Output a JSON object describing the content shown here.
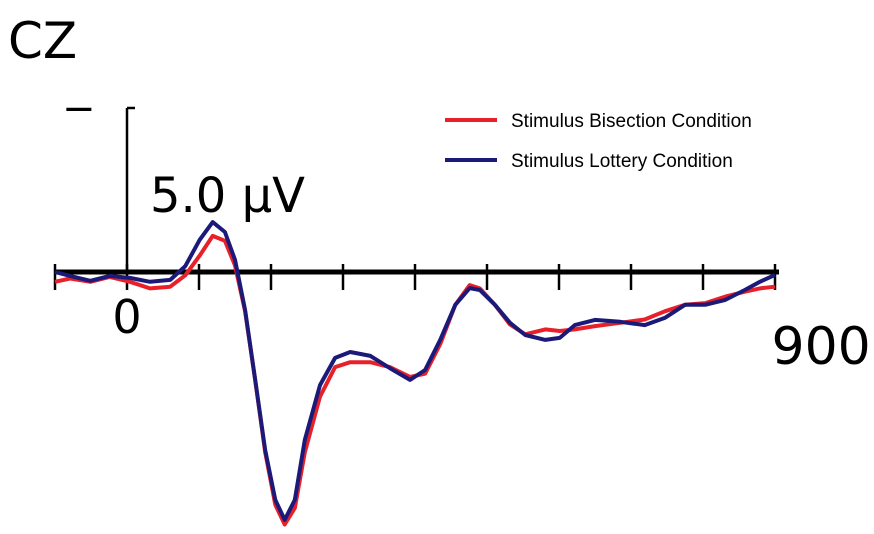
{
  "chart_data": {
    "type": "line",
    "title": "CZ",
    "x": [
      -100,
      -79,
      -51,
      -24,
      4,
      32,
      60,
      81,
      101,
      119,
      136,
      150,
      164,
      178,
      192,
      206,
      219,
      233,
      247,
      268,
      289,
      310,
      338,
      365,
      393,
      414,
      435,
      456,
      476,
      490,
      511,
      532,
      553,
      581,
      601,
      622,
      650,
      685,
      719,
      747,
      775,
      803,
      831,
      858,
      879,
      900
    ],
    "series": [
      {
        "name": "Stimulus Bisection Condition",
        "color": "#e8202a",
        "values": [
          0.3,
          0.2,
          0.3,
          0.15,
          0.3,
          0.5,
          0.45,
          0.1,
          -0.5,
          -1.1,
          -0.95,
          -0.2,
          1.2,
          3.3,
          5.5,
          7.1,
          7.7,
          7.2,
          5.5,
          3.8,
          2.9,
          2.75,
          2.75,
          2.9,
          3.2,
          3.1,
          2.2,
          1.0,
          0.4,
          0.5,
          1.0,
          1.6,
          1.9,
          1.75,
          1.8,
          1.75,
          1.65,
          1.55,
          1.45,
          1.2,
          1.0,
          0.95,
          0.75,
          0.6,
          0.5,
          0.45
        ]
      },
      {
        "name": "Stimulus Lottery Condition",
        "color": "#1c1a78",
        "values": [
          0,
          0.12,
          0.27,
          0.12,
          0.18,
          0.3,
          0.24,
          -0.18,
          -0.98,
          -1.52,
          -1.22,
          -0.37,
          1.16,
          3.29,
          5.43,
          6.95,
          7.56,
          6.95,
          5.12,
          3.45,
          2.62,
          2.44,
          2.56,
          2.93,
          3.29,
          2.99,
          2.07,
          1.0,
          0.49,
          0.55,
          1.0,
          1.55,
          1.92,
          2.07,
          2.01,
          1.62,
          1.46,
          1.52,
          1.62,
          1.4,
          1.0,
          1.0,
          0.85,
          0.55,
          0.3,
          0.09
        ]
      }
    ],
    "xlim": [
      -100,
      900
    ],
    "xticks": [
      0,
      {
        "value": 900,
        "label": "900ms"
      }
    ],
    "xminor_ticks": [
      -100,
      100,
      200,
      300,
      400,
      500,
      600,
      700,
      800
    ],
    "ylim": [
      -5.5,
      7.8
    ],
    "y_inverted": true,
    "scale_bar": {
      "value": 5,
      "label": "5.0 μV"
    },
    "polarity_label": "−",
    "legend": "top-right"
  }
}
